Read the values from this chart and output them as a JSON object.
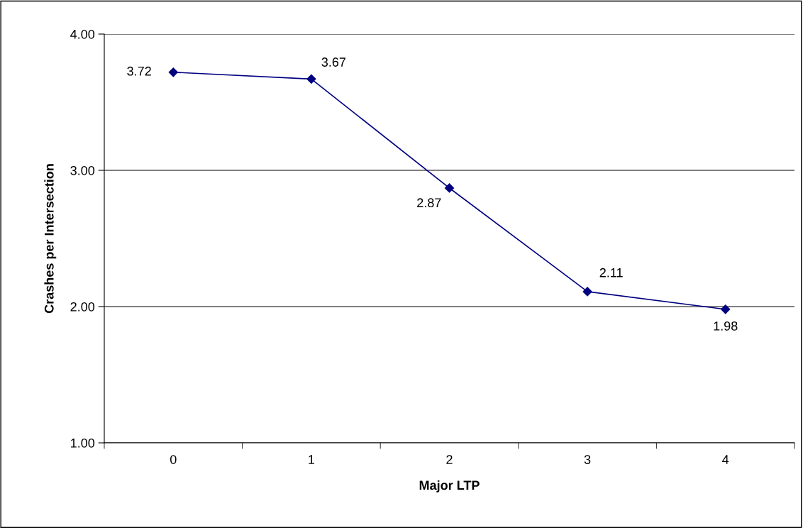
{
  "chart_data": {
    "type": "line",
    "xlabel": "Major LTP",
    "ylabel": "Crashes per Intersection",
    "categories": [
      "0",
      "1",
      "2",
      "3",
      "4"
    ],
    "series": [
      {
        "color": "#000080",
        "values": [
          3.72,
          3.67,
          2.87,
          2.11,
          1.98
        ]
      }
    ],
    "ylim": [
      1,
      4
    ],
    "yticks": [
      {
        "value": 1,
        "label": "1.00"
      },
      {
        "value": 2,
        "label": "2.00"
      },
      {
        "value": 3,
        "label": "3.00"
      },
      {
        "value": 4,
        "label": "4.00"
      }
    ],
    "grid": "y",
    "marker": "diamond",
    "line_style": "solid",
    "data_labels": true
  }
}
